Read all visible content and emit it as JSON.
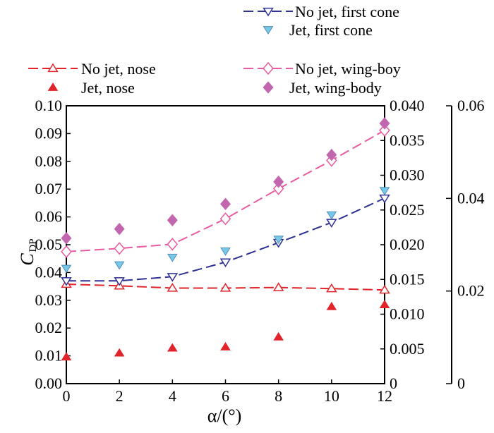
{
  "chart_data": {
    "type": "line",
    "x": [
      0,
      2,
      4,
      6,
      8,
      10,
      12
    ],
    "xlabel": "α/(°)",
    "ylabel": "C",
    "ylabel_sub": "DP",
    "xlim": [
      0,
      12
    ],
    "x_ticks": [
      "0",
      "2",
      "4",
      "6",
      "8",
      "10",
      "12"
    ],
    "axes": {
      "left": {
        "ylim": [
          0,
          0.1
        ],
        "ticks": [
          "0.00",
          "0.01",
          "0.02",
          "0.03",
          "0.04",
          "0.05",
          "0.06",
          "0.07",
          "0.08",
          "0.09",
          "0.10"
        ]
      },
      "right1": {
        "ylim": [
          0,
          0.04
        ],
        "ticks": [
          "0",
          "0.005",
          "0.010",
          "0.015",
          "0.020",
          "0.025",
          "0.030",
          "0.035",
          "0.040"
        ]
      },
      "right2": {
        "ylim": [
          0,
          0.06
        ],
        "ticks": [
          "0",
          "0.02",
          "0.04",
          "0.06"
        ]
      }
    },
    "grid": false,
    "legend_placement": "top",
    "series": [
      {
        "key": "nojet_nose",
        "name": "No jet, nose",
        "axis": "left",
        "style": "dashed-line",
        "marker": "triangle-up-open",
        "color": "#e0242a",
        "values": [
          0.0358,
          0.0352,
          0.0344,
          0.0344,
          0.0346,
          0.0342,
          0.0337
        ]
      },
      {
        "key": "jet_nose",
        "name": "Jet, nose",
        "axis": "left",
        "style": "markers",
        "marker": "triangle-up-filled",
        "color": "#e0242a",
        "values": [
          0.0096,
          0.011,
          0.0128,
          0.0132,
          0.0168,
          0.0277,
          0.0284
        ]
      },
      {
        "key": "nojet_cone",
        "name": "No jet, first cone",
        "axis": "right1",
        "style": "dashed-line",
        "marker": "triangle-down-open",
        "color": "#2e3192",
        "values": [
          0.0148,
          0.0148,
          0.0154,
          0.0175,
          0.0203,
          0.0232,
          0.0267
        ]
      },
      {
        "key": "jet_cone",
        "name": "Jet, first cone",
        "axis": "right1",
        "style": "markers",
        "marker": "triangle-down-filled",
        "color": "#78c8e8",
        "values": [
          0.0166,
          0.0171,
          0.0182,
          0.0191,
          0.0208,
          0.0243,
          0.0278
        ]
      },
      {
        "key": "nojet_wing",
        "name": "No jet, wing-boy",
        "axis": "right2",
        "style": "dashed-line",
        "marker": "diamond-open",
        "color": "#e85aa0",
        "values": [
          0.0285,
          0.0292,
          0.0301,
          0.0356,
          0.0421,
          0.0482,
          0.0547
        ]
      },
      {
        "key": "jet_wing",
        "name": "Jet, wing-body",
        "axis": "right2",
        "style": "markers",
        "marker": "diamond-filled",
        "color": "#c266b0",
        "values": [
          0.0314,
          0.0334,
          0.0353,
          0.0388,
          0.0436,
          0.0494,
          0.0562
        ]
      }
    ]
  }
}
